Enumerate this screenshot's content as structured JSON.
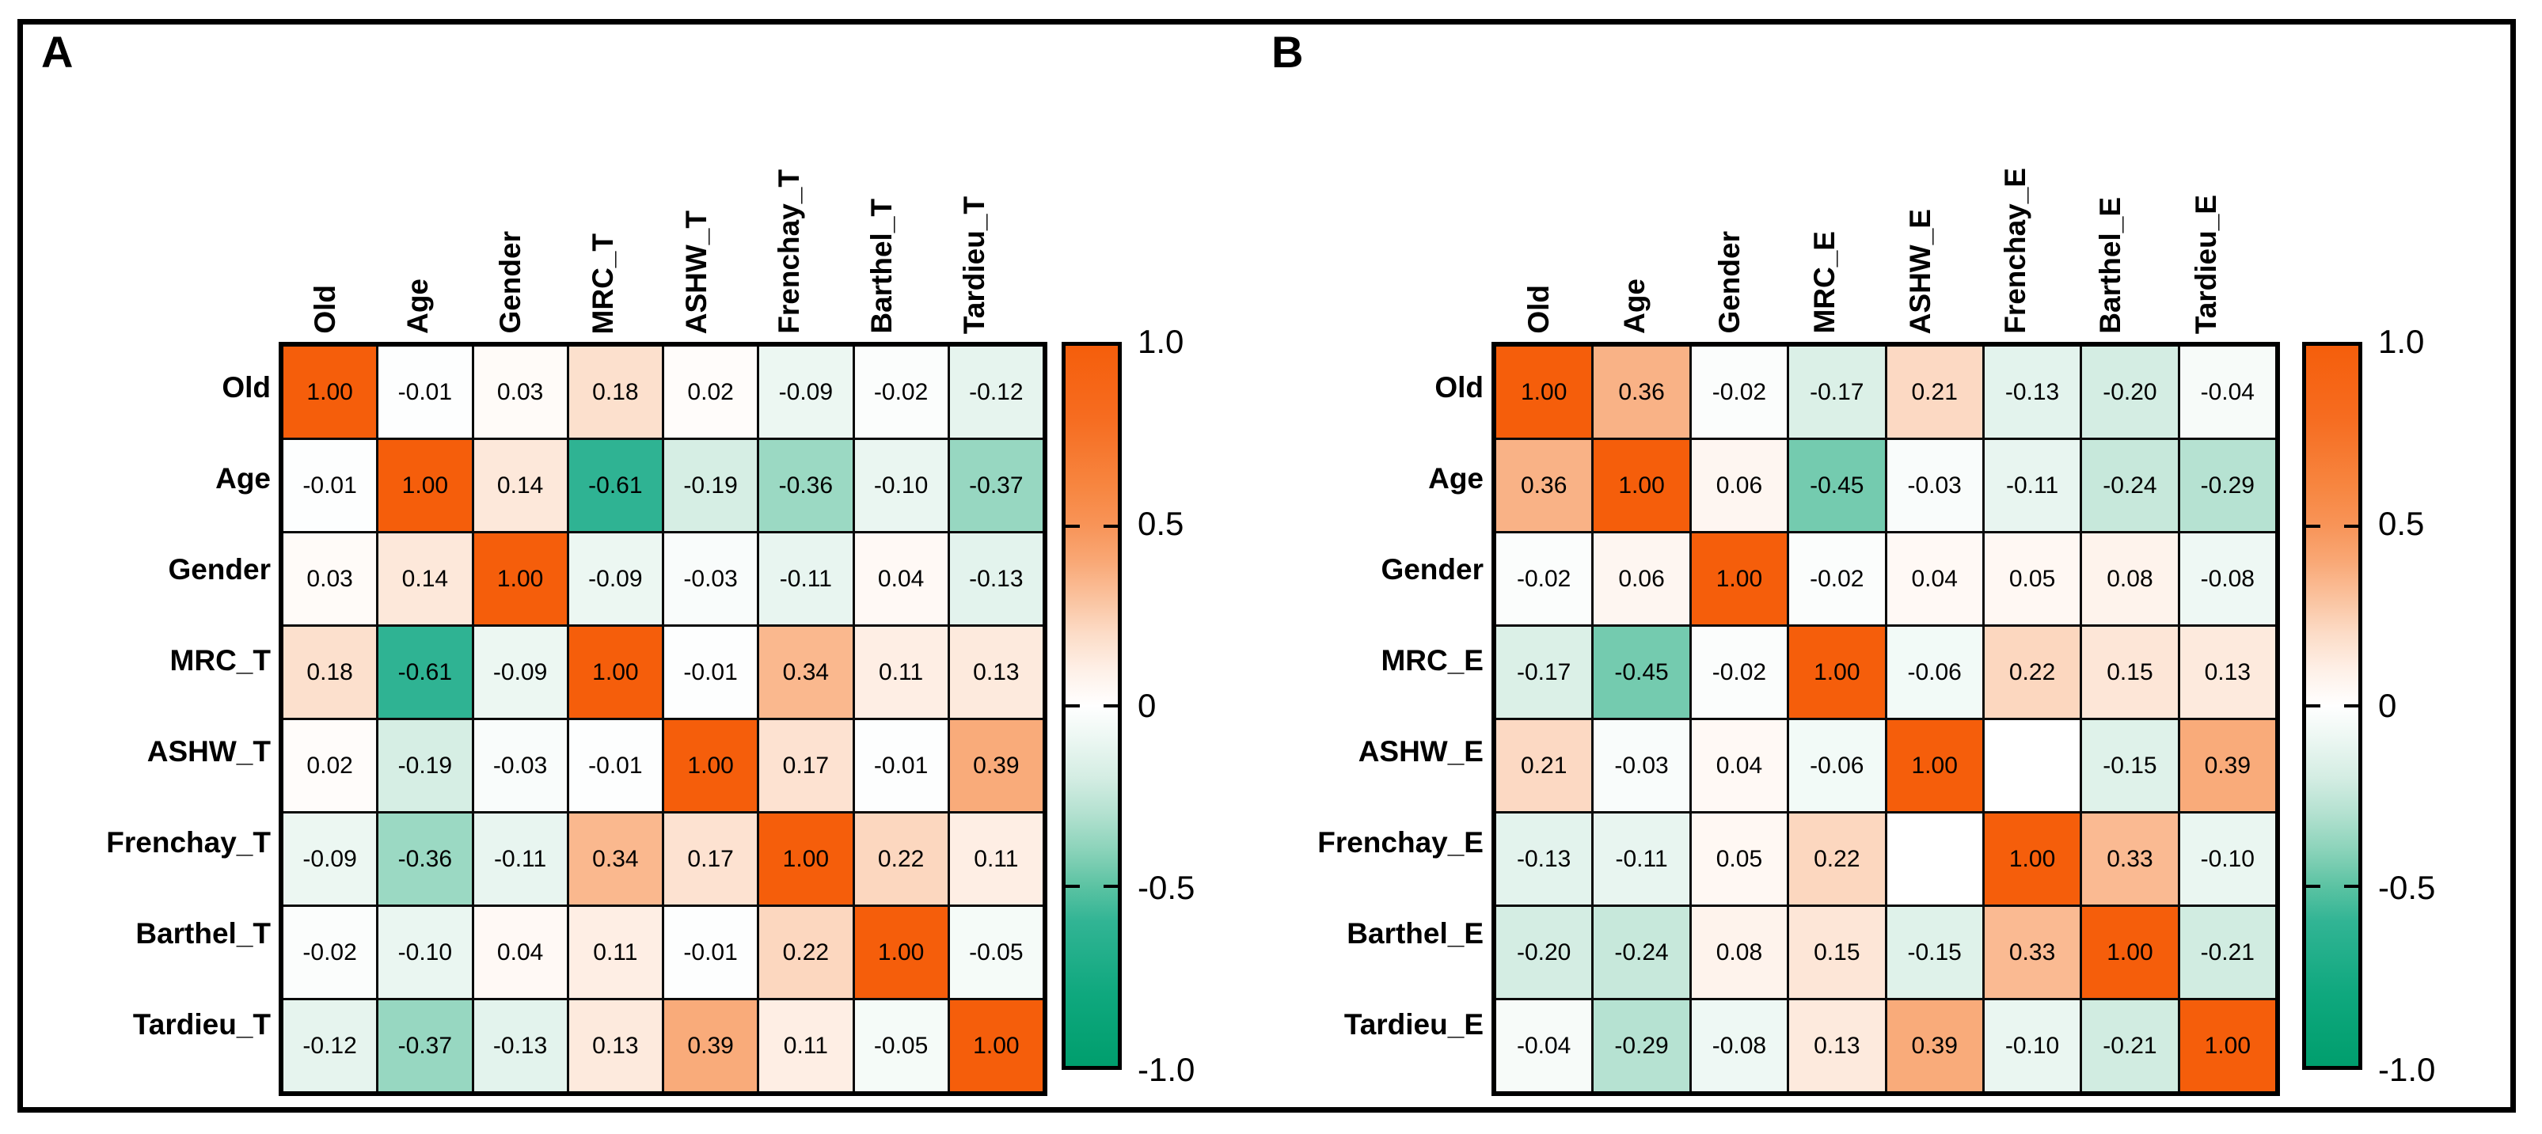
{
  "figure": {
    "background": "#ffffff",
    "border_color": "#000000"
  },
  "panels": [
    {
      "label": "A"
    },
    {
      "label": "B"
    }
  ],
  "colorscale": {
    "positive_end": "#F55E0B",
    "negative_end": "#009E6D",
    "stops_positive": [
      [
        0,
        "#FFFFFF"
      ],
      [
        0.1,
        "#FEF0E7"
      ],
      [
        0.2,
        "#FCDCC7"
      ],
      [
        0.3,
        "#FAC29E"
      ],
      [
        0.4,
        "#F9A876"
      ],
      [
        0.5,
        "#F89458"
      ],
      [
        0.6,
        "#F78742"
      ],
      [
        0.8,
        "#F66C20"
      ],
      [
        1,
        "#F55E0B"
      ]
    ],
    "stops_negative": [
      [
        0,
        "#FFFFFF"
      ],
      [
        0.1,
        "#EAF6F1"
      ],
      [
        0.2,
        "#D4EDE3"
      ],
      [
        0.3,
        "#B3E1D0"
      ],
      [
        0.4,
        "#8BD3BA"
      ],
      [
        0.5,
        "#5CC3A3"
      ],
      [
        0.6,
        "#31B494"
      ],
      [
        0.8,
        "#0FA87E"
      ],
      [
        1,
        "#009E6D"
      ]
    ]
  },
  "chart_data": [
    {
      "type": "heatmap",
      "panel": "A",
      "categories_x": [
        "Old",
        "Age",
        "Gender",
        "MRC_T",
        "ASHW_T",
        "Frenchay_T",
        "Barthel_T",
        "Tardieu_T"
      ],
      "categories_y": [
        "Old",
        "Age",
        "Gender",
        "MRC_T",
        "ASHW_T",
        "Frenchay_T",
        "Barthel_T",
        "Tardieu_T"
      ],
      "values": [
        [
          1.0,
          -0.01,
          0.03,
          0.18,
          0.02,
          -0.09,
          -0.02,
          -0.12
        ],
        [
          -0.01,
          1.0,
          0.14,
          -0.61,
          -0.19,
          -0.36,
          -0.1,
          -0.37
        ],
        [
          0.03,
          0.14,
          1.0,
          -0.09,
          -0.03,
          -0.11,
          0.04,
          -0.13
        ],
        [
          0.18,
          -0.61,
          -0.09,
          1.0,
          -0.01,
          0.34,
          0.11,
          0.13
        ],
        [
          0.02,
          -0.19,
          -0.03,
          -0.01,
          1.0,
          0.17,
          -0.01,
          0.39
        ],
        [
          -0.09,
          -0.36,
          -0.11,
          0.34,
          0.17,
          1.0,
          0.22,
          0.11
        ],
        [
          -0.02,
          -0.1,
          0.04,
          0.11,
          -0.01,
          0.22,
          1.0,
          -0.05
        ],
        [
          -0.12,
          -0.37,
          -0.13,
          0.13,
          0.39,
          0.11,
          -0.05,
          1.0
        ]
      ],
      "value_decimals": 2,
      "colorbar": {
        "range": [
          -1,
          1
        ],
        "position": "right",
        "tick_values": [
          1.0,
          0.5,
          0,
          -0.5,
          -1.0
        ],
        "tick_labels": [
          "1.0",
          "0.5",
          "0",
          "-0.5",
          "-1.0"
        ]
      },
      "grid": true,
      "legend_position": "right"
    },
    {
      "type": "heatmap",
      "panel": "B",
      "categories_x": [
        "Old",
        "Age",
        "Gender",
        "MRC_E",
        "ASHW_E",
        "Frenchay_E",
        "Barthel_E",
        "Tardieu_E"
      ],
      "categories_y": [
        "Old",
        "Age",
        "Gender",
        "MRC_E",
        "ASHW_E",
        "Frenchay_E",
        "Barthel_E",
        "Tardieu_E"
      ],
      "values": [
        [
          1.0,
          0.36,
          -0.02,
          -0.17,
          0.21,
          -0.13,
          -0.2,
          -0.04
        ],
        [
          0.36,
          1.0,
          0.06,
          -0.45,
          -0.03,
          -0.11,
          -0.24,
          -0.29
        ],
        [
          -0.02,
          0.06,
          1.0,
          -0.02,
          0.04,
          0.05,
          0.08,
          -0.08
        ],
        [
          -0.17,
          -0.45,
          -0.02,
          1.0,
          -0.06,
          0.22,
          0.15,
          0.13
        ],
        [
          0.21,
          -0.03,
          0.04,
          -0.06,
          1.0,
          null,
          -0.15,
          0.39
        ],
        [
          -0.13,
          -0.11,
          0.05,
          0.22,
          null,
          1.0,
          0.33,
          -0.1
        ],
        [
          -0.2,
          -0.24,
          0.08,
          0.15,
          -0.15,
          0.33,
          1.0,
          -0.21
        ],
        [
          -0.04,
          -0.29,
          -0.08,
          0.13,
          0.39,
          -0.1,
          -0.21,
          1.0
        ]
      ],
      "value_decimals": 2,
      "colorbar": {
        "range": [
          -1,
          1
        ],
        "position": "right",
        "tick_values": [
          1.0,
          0.5,
          0,
          -0.5,
          -1.0
        ],
        "tick_labels": [
          "1.0",
          "0.5",
          "0",
          "-0.5",
          "-1.0"
        ]
      },
      "grid": true,
      "legend_position": "right"
    }
  ]
}
